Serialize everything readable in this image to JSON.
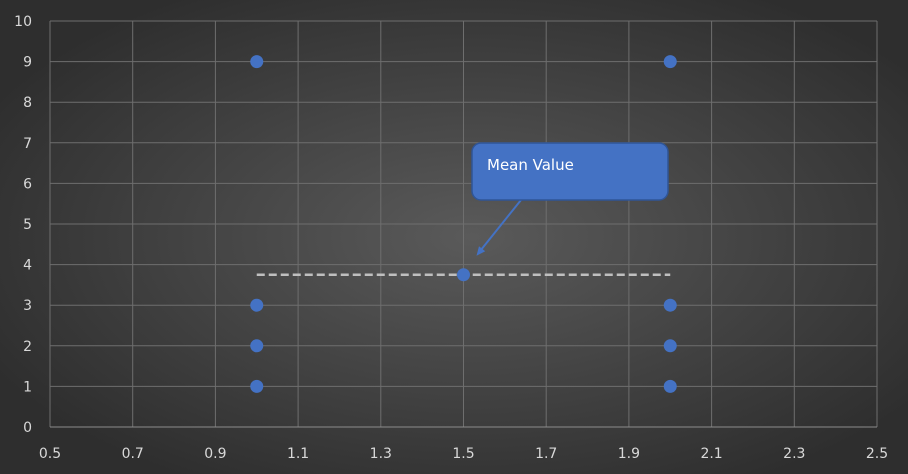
{
  "chart_data": {
    "type": "scatter",
    "title": "",
    "xlabel": "",
    "ylabel": "",
    "xlim": [
      0.5,
      2.5
    ],
    "ylim": [
      0,
      10
    ],
    "xticks": [
      0.5,
      0.7,
      0.9,
      1.1,
      1.3,
      1.5,
      1.7,
      1.9,
      2.1,
      2.3,
      2.5
    ],
    "xtick_labels": [
      "0.5",
      "0.7",
      "0.9",
      "1.1",
      "1.3",
      "1.5",
      "1.7",
      "1.9",
      "2.1",
      "2.3",
      "2.5"
    ],
    "yticks": [
      0,
      1,
      2,
      3,
      4,
      5,
      6,
      7,
      8,
      9,
      10
    ],
    "ytick_labels": [
      "0",
      "1",
      "2",
      "3",
      "4",
      "5",
      "6",
      "7",
      "8",
      "9",
      "10"
    ],
    "grid": true,
    "legend": "none",
    "series": [
      {
        "points": [
          [
            1,
            1
          ],
          [
            1,
            2
          ],
          [
            1,
            3
          ],
          [
            1,
            9
          ],
          [
            2,
            1
          ],
          [
            2,
            2
          ],
          [
            2,
            3
          ],
          [
            2,
            9
          ]
        ],
        "color": "#4472c4"
      },
      {
        "points": [
          [
            1.5,
            3.75
          ]
        ],
        "color": "#4472c4"
      }
    ],
    "mean_line": {
      "x": [
        1,
        2
      ],
      "y": 3.75,
      "color": "#bfbfbf",
      "style": "dashed"
    },
    "annotation": {
      "text": "Mean Value",
      "target": [
        1.5,
        3.75
      ],
      "fill": "#4472c4"
    },
    "colors": {
      "background_center": "#5a5a5a",
      "background_edge": "#2e2e2e",
      "grid": "#6e6e6e",
      "marker": "#4472c4"
    }
  }
}
